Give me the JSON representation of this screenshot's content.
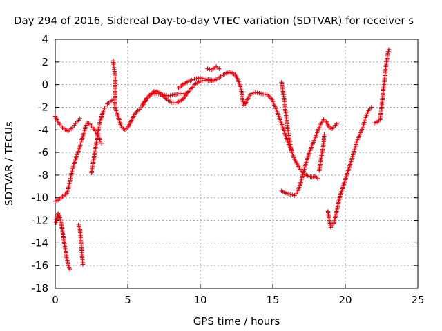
{
  "chart_data": {
    "type": "scatter",
    "title": "Day 294 of 2016, Sidereal Day-to-day VTEC variation (SDTVAR) for receiver s",
    "xlabel": "GPS time / hours",
    "ylabel": "SDTVAR / TECUs",
    "xlim": [
      0,
      25
    ],
    "ylim": [
      -18,
      4
    ],
    "xticks": [
      "0",
      "5",
      "10",
      "15",
      "20",
      "25"
    ],
    "yticks": [
      "4",
      "2",
      "0",
      "-2",
      "-4",
      "-6",
      "-8",
      "-10",
      "-12",
      "-14",
      "-16",
      "-18"
    ],
    "grid": true,
    "marker": "plus",
    "color": "#e8000b",
    "series": [
      {
        "points": [
          [
            0.0,
            -2.8
          ],
          [
            0.1,
            -3.1
          ],
          [
            0.3,
            -3.5
          ],
          [
            0.5,
            -3.8
          ],
          [
            0.7,
            -4.0
          ],
          [
            0.9,
            -4.1
          ],
          [
            1.1,
            -3.9
          ],
          [
            1.3,
            -3.6
          ],
          [
            1.5,
            -3.3
          ],
          [
            1.7,
            -3.0
          ]
        ]
      },
      {
        "points": [
          [
            0.0,
            -10.3
          ],
          [
            0.2,
            -10.2
          ],
          [
            0.4,
            -10.0
          ],
          [
            0.6,
            -9.8
          ],
          [
            0.8,
            -9.6
          ],
          [
            0.9,
            -9.2
          ],
          [
            1.0,
            -8.6
          ],
          [
            1.1,
            -8.0
          ],
          [
            1.2,
            -7.4
          ],
          [
            1.3,
            -7.0
          ],
          [
            1.4,
            -6.6
          ],
          [
            1.5,
            -6.2
          ],
          [
            1.6,
            -5.9
          ],
          [
            1.7,
            -5.5
          ],
          [
            1.8,
            -5.0
          ],
          [
            1.9,
            -4.6
          ],
          [
            2.0,
            -4.2
          ],
          [
            2.1,
            -3.6
          ],
          [
            2.2,
            -3.4
          ],
          [
            2.4,
            -3.5
          ],
          [
            2.6,
            -3.8
          ],
          [
            2.8,
            -4.2
          ],
          [
            3.0,
            -4.6
          ],
          [
            3.1,
            -5.0
          ],
          [
            3.2,
            -5.2
          ]
        ]
      },
      {
        "points": [
          [
            0.05,
            -12.2
          ],
          [
            0.1,
            -11.8
          ],
          [
            0.2,
            -11.4
          ],
          [
            0.3,
            -11.6
          ],
          [
            0.4,
            -12.2
          ],
          [
            0.5,
            -13.0
          ],
          [
            0.6,
            -13.8
          ],
          [
            0.7,
            -14.6
          ],
          [
            0.8,
            -15.4
          ],
          [
            0.9,
            -16.0
          ],
          [
            1.0,
            -16.3
          ]
        ]
      },
      {
        "points": [
          [
            1.6,
            -12.4
          ],
          [
            1.7,
            -12.8
          ],
          [
            1.75,
            -13.5
          ],
          [
            1.8,
            -14.2
          ],
          [
            1.85,
            -15.0
          ],
          [
            1.9,
            -15.9
          ]
        ]
      },
      {
        "points": [
          [
            2.5,
            -7.8
          ],
          [
            2.6,
            -7.0
          ],
          [
            2.7,
            -6.2
          ],
          [
            2.8,
            -5.4
          ],
          [
            2.9,
            -4.6
          ],
          [
            3.0,
            -3.8
          ],
          [
            3.1,
            -3.2
          ],
          [
            3.2,
            -2.8
          ],
          [
            3.3,
            -2.4
          ],
          [
            3.4,
            -2.1
          ],
          [
            3.5,
            -1.9
          ],
          [
            3.6,
            -1.7
          ],
          [
            3.8,
            -1.5
          ],
          [
            4.0,
            -1.3
          ]
        ]
      },
      {
        "points": [
          [
            4.0,
            2.1
          ],
          [
            4.05,
            1.5
          ],
          [
            4.1,
            1.0
          ],
          [
            4.15,
            0.5
          ],
          [
            4.1,
            -2.0
          ],
          [
            4.2,
            -2.3
          ],
          [
            4.3,
            -2.7
          ],
          [
            4.4,
            -3.1
          ],
          [
            4.5,
            -3.5
          ],
          [
            4.6,
            -3.8
          ],
          [
            4.8,
            -4.0
          ],
          [
            5.0,
            -3.8
          ],
          [
            5.2,
            -3.3
          ],
          [
            5.4,
            -2.8
          ],
          [
            5.6,
            -2.4
          ],
          [
            5.8,
            -2.2
          ],
          [
            6.0,
            -1.9
          ],
          [
            6.2,
            -1.5
          ],
          [
            6.4,
            -1.1
          ],
          [
            6.6,
            -0.8
          ],
          [
            6.8,
            -0.7
          ],
          [
            7.0,
            -0.6
          ]
        ]
      },
      {
        "points": [
          [
            6.0,
            -1.8
          ],
          [
            6.3,
            -1.2
          ],
          [
            6.6,
            -0.9
          ],
          [
            7.0,
            -0.8
          ],
          [
            7.4,
            -0.9
          ],
          [
            7.8,
            -1.0
          ],
          [
            8.2,
            -0.9
          ],
          [
            8.6,
            -0.8
          ],
          [
            9.0,
            -0.8
          ]
        ]
      },
      {
        "points": [
          [
            6.8,
            -0.6
          ],
          [
            7.2,
            -0.7
          ],
          [
            7.6,
            -1.2
          ],
          [
            8.0,
            -1.6
          ],
          [
            8.4,
            -1.6
          ],
          [
            8.8,
            -1.3
          ],
          [
            9.2,
            -0.6
          ],
          [
            9.6,
            0.0
          ],
          [
            10.0,
            0.3
          ],
          [
            10.4,
            0.4
          ],
          [
            10.8,
            0.3
          ],
          [
            11.2,
            0.5
          ],
          [
            11.6,
            0.9
          ],
          [
            12.0,
            1.1
          ],
          [
            12.4,
            0.9
          ],
          [
            12.6,
            0.4
          ],
          [
            12.8,
            -0.3
          ],
          [
            12.9,
            -1.2
          ],
          [
            13.0,
            -1.8
          ],
          [
            13.1,
            -1.7
          ],
          [
            13.3,
            -1.2
          ],
          [
            13.5,
            -0.8
          ],
          [
            13.8,
            -0.7
          ],
          [
            14.2,
            -0.8
          ],
          [
            14.6,
            -0.9
          ],
          [
            14.9,
            -1.2
          ],
          [
            15.1,
            -1.8
          ],
          [
            15.3,
            -2.4
          ],
          [
            15.5,
            -3.1
          ],
          [
            15.7,
            -3.8
          ],
          [
            15.9,
            -4.6
          ],
          [
            16.1,
            -5.3
          ],
          [
            16.3,
            -5.8
          ]
        ]
      },
      {
        "points": [
          [
            8.5,
            -0.3
          ],
          [
            8.8,
            0.0
          ],
          [
            9.2,
            0.3
          ],
          [
            9.6,
            0.5
          ],
          [
            10.0,
            0.6
          ],
          [
            10.4,
            0.5
          ],
          [
            10.8,
            0.4
          ]
        ]
      },
      {
        "points": [
          [
            10.5,
            1.4
          ],
          [
            10.8,
            1.3
          ],
          [
            11.1,
            1.6
          ],
          [
            11.3,
            1.4
          ]
        ]
      },
      {
        "points": [
          [
            15.6,
            0.2
          ],
          [
            15.7,
            -0.6
          ],
          [
            15.8,
            -1.5
          ],
          [
            15.9,
            -2.6
          ],
          [
            16.0,
            -3.6
          ],
          [
            16.1,
            -4.5
          ],
          [
            16.2,
            -5.3
          ],
          [
            16.3,
            -6.0
          ],
          [
            16.5,
            -6.6
          ],
          [
            16.7,
            -7.1
          ],
          [
            16.9,
            -7.5
          ],
          [
            17.1,
            -7.8
          ],
          [
            17.3,
            -8.0
          ],
          [
            17.5,
            -8.1
          ],
          [
            17.7,
            -8.2
          ],
          [
            17.9,
            -8.1
          ],
          [
            18.1,
            -8.3
          ]
        ]
      },
      {
        "points": [
          [
            15.6,
            -9.4
          ],
          [
            15.9,
            -9.6
          ],
          [
            16.2,
            -9.7
          ],
          [
            16.5,
            -9.8
          ],
          [
            16.7,
            -9.5
          ],
          [
            16.9,
            -8.8
          ],
          [
            17.1,
            -7.8
          ],
          [
            17.3,
            -6.9
          ],
          [
            17.5,
            -6.1
          ],
          [
            17.7,
            -5.4
          ],
          [
            17.9,
            -4.8
          ],
          [
            18.1,
            -4.1
          ],
          [
            18.3,
            -3.5
          ],
          [
            18.5,
            -3.1
          ],
          [
            18.7,
            -3.3
          ],
          [
            18.9,
            -3.8
          ],
          [
            19.1,
            -3.9
          ],
          [
            19.3,
            -3.6
          ],
          [
            19.5,
            -3.4
          ]
        ]
      },
      {
        "points": [
          [
            18.2,
            -7.6
          ],
          [
            18.3,
            -6.8
          ],
          [
            18.4,
            -6.0
          ],
          [
            18.5,
            -5.2
          ],
          [
            18.55,
            -4.4
          ]
        ]
      },
      {
        "points": [
          [
            18.8,
            -11.2
          ],
          [
            18.9,
            -12.0
          ],
          [
            19.0,
            -12.6
          ],
          [
            19.2,
            -12.3
          ],
          [
            19.4,
            -11.2
          ],
          [
            19.6,
            -10.0
          ],
          [
            19.8,
            -9.2
          ],
          [
            20.0,
            -8.4
          ],
          [
            20.2,
            -7.6
          ],
          [
            20.4,
            -6.8
          ],
          [
            20.6,
            -5.9
          ],
          [
            20.8,
            -5.0
          ],
          [
            21.0,
            -4.4
          ],
          [
            21.2,
            -3.8
          ],
          [
            21.4,
            -2.9
          ],
          [
            21.6,
            -2.3
          ],
          [
            21.8,
            -2.0
          ]
        ]
      },
      {
        "points": [
          [
            22.0,
            -3.4
          ],
          [
            22.2,
            -3.3
          ],
          [
            22.4,
            -3.1
          ],
          [
            22.5,
            -2.0
          ],
          [
            22.6,
            -0.8
          ],
          [
            22.7,
            0.4
          ],
          [
            22.8,
            1.6
          ],
          [
            22.9,
            2.6
          ],
          [
            23.0,
            3.1
          ]
        ]
      }
    ]
  }
}
